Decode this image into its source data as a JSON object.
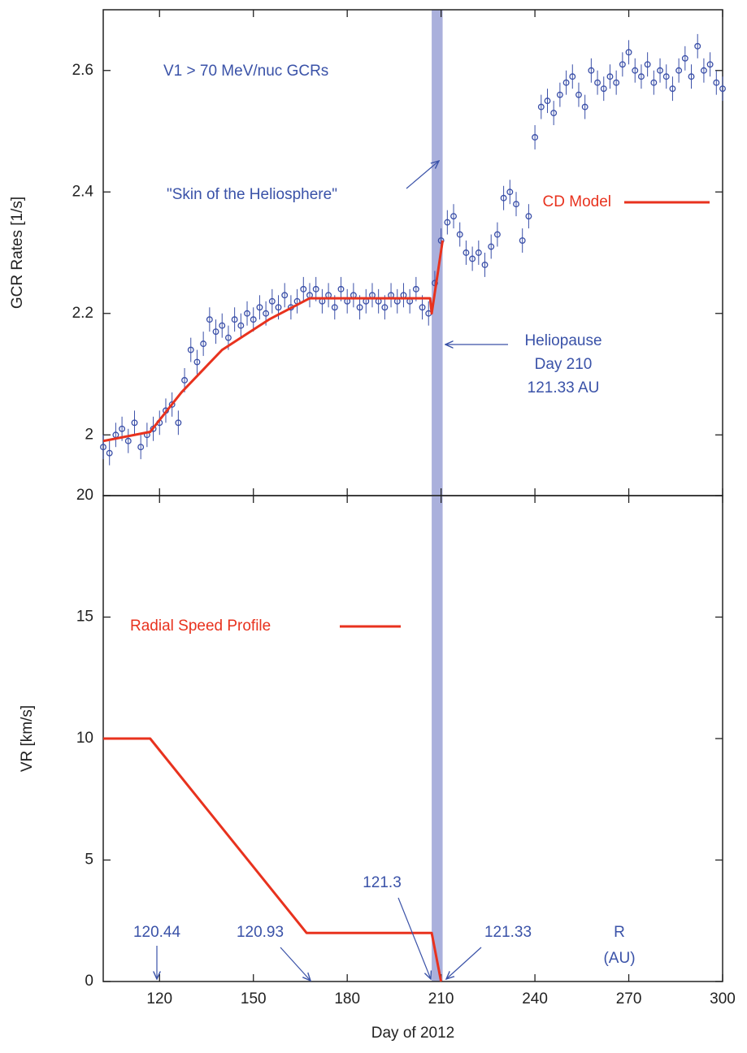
{
  "chart_data": [
    {
      "type": "scatter",
      "ylabel": "GCR Rates [1/s]",
      "xlim": [
        102,
        300
      ],
      "ylim": [
        1.9,
        2.7
      ],
      "xticks": [
        120,
        150,
        180,
        210,
        240,
        270,
        300
      ],
      "xtick_labels": false,
      "yticks": [
        2,
        2.2,
        2.4,
        2.6
      ],
      "highlight": {
        "xlim": [
          207,
          210.5
        ],
        "color": "#aab0dc"
      },
      "series": [
        {
          "type": "scatter",
          "color": "#3a4fa8",
          "error": 0.02,
          "x": [
            102,
            104,
            106,
            108,
            110,
            112,
            114,
            116,
            118,
            120,
            122,
            124,
            126,
            128,
            130,
            132,
            134,
            136,
            138,
            140,
            142,
            144,
            146,
            148,
            150,
            152,
            154,
            156,
            158,
            160,
            162,
            164,
            166,
            168,
            170,
            172,
            174,
            176,
            178,
            180,
            182,
            184,
            186,
            188,
            190,
            192,
            194,
            196,
            198,
            200,
            202,
            204,
            206,
            208,
            210,
            212,
            214,
            216,
            218,
            220,
            222,
            224,
            226,
            228,
            230,
            232,
            234,
            236,
            238,
            240,
            242,
            244,
            246,
            248,
            250,
            252,
            254,
            256,
            258,
            260,
            262,
            264,
            266,
            268,
            270,
            272,
            274,
            276,
            278,
            280,
            282,
            284,
            286,
            288,
            290,
            292,
            294,
            296,
            298,
            300
          ],
          "values": [
            1.98,
            1.97,
            2.0,
            2.01,
            1.99,
            2.02,
            1.98,
            2.0,
            2.01,
            2.02,
            2.04,
            2.05,
            2.02,
            2.09,
            2.14,
            2.12,
            2.15,
            2.19,
            2.17,
            2.18,
            2.16,
            2.19,
            2.18,
            2.2,
            2.19,
            2.21,
            2.2,
            2.22,
            2.21,
            2.23,
            2.21,
            2.22,
            2.24,
            2.23,
            2.24,
            2.22,
            2.23,
            2.21,
            2.24,
            2.22,
            2.23,
            2.21,
            2.22,
            2.23,
            2.22,
            2.21,
            2.23,
            2.22,
            2.23,
            2.22,
            2.24,
            2.21,
            2.2,
            2.25,
            2.32,
            2.35,
            2.36,
            2.33,
            2.3,
            2.29,
            2.3,
            2.28,
            2.31,
            2.33,
            2.39,
            2.4,
            2.38,
            2.32,
            2.36,
            2.49,
            2.54,
            2.55,
            2.53,
            2.56,
            2.58,
            2.59,
            2.56,
            2.54,
            2.6,
            2.58,
            2.57,
            2.59,
            2.58,
            2.61,
            2.63,
            2.6,
            2.59,
            2.61,
            2.58,
            2.6,
            2.59,
            2.57,
            2.6,
            2.62,
            2.59,
            2.64,
            2.6,
            2.61,
            2.58,
            2.57
          ]
        },
        {
          "type": "line",
          "name": "CD Model",
          "color": "#e8321e",
          "x": [
            102,
            117,
            127,
            140,
            155,
            168,
            206.5,
            207,
            210.5
          ],
          "values": [
            1.99,
            2.005,
            2.07,
            2.14,
            2.19,
            2.225,
            2.225,
            2.2,
            2.32
          ]
        }
      ],
      "annotations": [
        {
          "lines": [
            "V1 > 70 MeV/nuc GCRs"
          ]
        },
        {
          "lines": [
            "\"Skin of the Heliosphere\""
          ]
        },
        {
          "lines": [
            "Heliopause",
            "Day 210",
            "121.33 AU"
          ]
        }
      ]
    },
    {
      "type": "line",
      "xlabel": "Day of 2012",
      "ylabel": "VR [km/s]",
      "xlim": [
        102,
        300
      ],
      "ylim": [
        0,
        20
      ],
      "xticks": [
        120,
        150,
        180,
        210,
        240,
        270,
        300
      ],
      "yticks": [
        0,
        5,
        10,
        15,
        20
      ],
      "highlight": {
        "xlim": [
          207,
          210.5
        ],
        "color": "#aab0dc"
      },
      "series": [
        {
          "type": "line",
          "name": "Radial Speed Profile",
          "color": "#e8321e",
          "x": [
            102,
            117,
            167,
            207,
            210
          ],
          "values": [
            10,
            10,
            2,
            2,
            0
          ]
        }
      ],
      "annotations": [
        {
          "lines": [
            "120.44"
          ]
        },
        {
          "lines": [
            "120.93"
          ]
        },
        {
          "lines": [
            "121.3"
          ]
        },
        {
          "lines": [
            "121.33"
          ]
        },
        {
          "lines": [
            "R",
            "(AU)"
          ]
        }
      ]
    }
  ]
}
